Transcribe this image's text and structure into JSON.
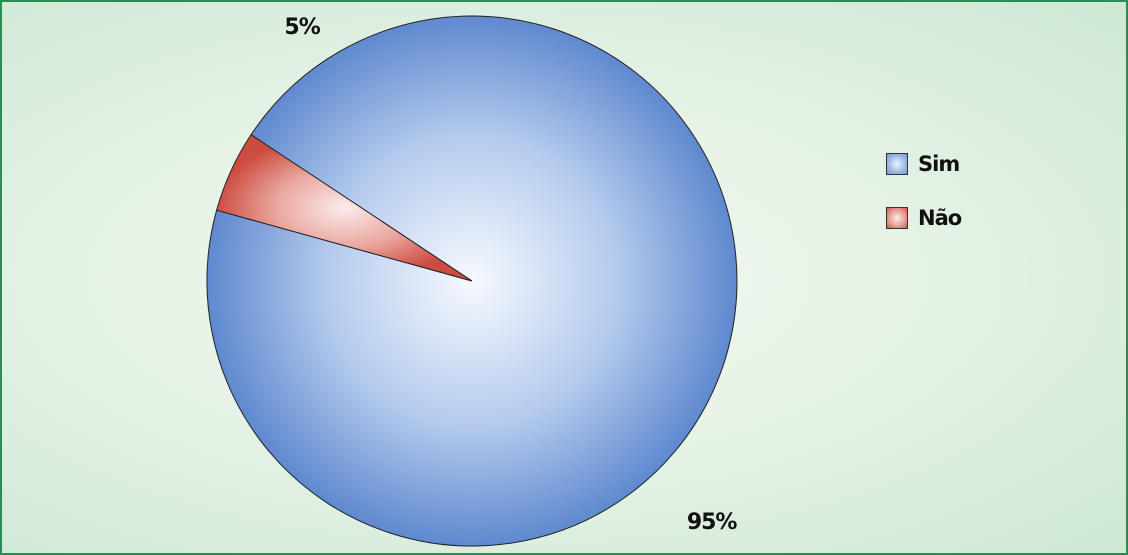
{
  "chart_data": {
    "type": "pie",
    "categories": [
      "Sim",
      "Não"
    ],
    "values": [
      95,
      5
    ],
    "data_labels": [
      "95%",
      "5%"
    ],
    "colors": [
      "#6f95d4",
      "#d0574b"
    ],
    "legend_position": "right",
    "title": "",
    "xlabel": "",
    "ylabel": ""
  }
}
